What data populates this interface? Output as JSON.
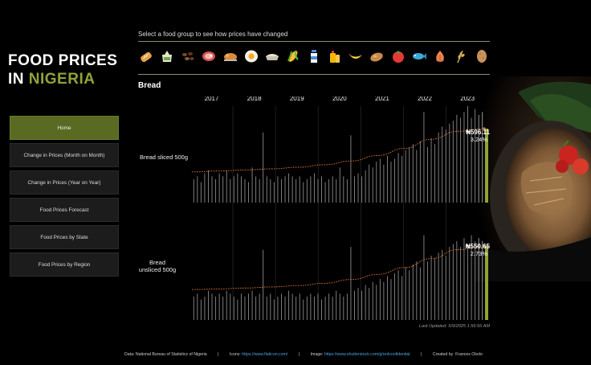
{
  "title": {
    "line1": "FOOD PRICES",
    "line2_prefix": "IN ",
    "line2_accent": "NIGERIA"
  },
  "nav": [
    {
      "label": "Home",
      "active": true
    },
    {
      "label": "Change in Prices (Month on Month)",
      "active": false
    },
    {
      "label": "Change in Prices (Year on Year)",
      "active": false
    },
    {
      "label": "Food Prices Forecast",
      "active": false
    },
    {
      "label": "Food Prices by State",
      "active": false
    },
    {
      "label": "Food Prices by Region",
      "active": false
    }
  ],
  "instruction": "Select a food group to see how prices have changed",
  "food_icons": [
    "bread-icon",
    "rice-bag-icon",
    "beans-icon",
    "beef-icon",
    "chicken-icon",
    "egg-icon",
    "garri-icon",
    "maize-icon",
    "milk-icon",
    "vegetable-oil-icon",
    "plantain-icon",
    "yam-icon",
    "tomato-icon",
    "fish-icon",
    "onion-icon",
    "millet-icon",
    "potato-icon"
  ],
  "selected_group": "Bread",
  "years": [
    "2017",
    "2018",
    "2019",
    "2020",
    "2021",
    "2022",
    "2023"
  ],
  "chart_data": [
    {
      "type": "bar",
      "series_label": "Bread sliced 500g",
      "current_price": "₦596.11",
      "current_change": "3.24%",
      "x_start": "2017-01",
      "x_end": "2023-06",
      "trend": [
        300,
        306,
        313,
        321,
        332,
        349,
        375,
        412,
        461,
        523,
        578,
        596
      ],
      "monthly_change": [
        0.8,
        0.9,
        0.7,
        1.0,
        1.1,
        0.9,
        0.8,
        1.0,
        0.9,
        1.1,
        0.8,
        0.9,
        1.0,
        0.9,
        0.8,
        0.7,
        1.2,
        0.9,
        0.8,
        2.4,
        0.9,
        0.8,
        0.7,
        0.9,
        0.8,
        0.9,
        1.0,
        0.9,
        0.8,
        0.9,
        0.7,
        0.8,
        0.9,
        1.0,
        0.8,
        0.9,
        0.7,
        0.8,
        0.9,
        0.8,
        1.2,
        0.9,
        0.8,
        2.3,
        0.9,
        1.0,
        0.9,
        1.1,
        1.3,
        1.2,
        1.4,
        1.5,
        1.3,
        1.6,
        1.4,
        1.5,
        1.7,
        1.6,
        1.8,
        1.9,
        2.0,
        1.8,
        2.1,
        3.1,
        1.9,
        2.2,
        2.0,
        2.4,
        2.6,
        2.5,
        2.7,
        2.8,
        3.0,
        2.9,
        3.1,
        3.3,
        2.9,
        3.2,
        3.0,
        3.1
      ],
      "max_change": 3.3
    },
    {
      "type": "bar",
      "series_label": "Bread unsliced 500g",
      "current_price": "₦550.65",
      "current_change": "2.73%",
      "x_start": "2017-01",
      "x_end": "2023-06",
      "trend": [
        270,
        274,
        280,
        287,
        296,
        311,
        335,
        368,
        412,
        470,
        527,
        551
      ],
      "monthly_change": [
        0.8,
        0.9,
        0.7,
        0.8,
        1.0,
        0.9,
        0.8,
        0.9,
        0.8,
        1.0,
        0.9,
        0.8,
        0.7,
        0.9,
        0.8,
        0.9,
        1.0,
        0.8,
        0.9,
        2.4,
        0.8,
        0.9,
        0.7,
        0.8,
        0.9,
        0.8,
        1.0,
        0.9,
        0.8,
        0.9,
        0.7,
        0.8,
        0.9,
        0.8,
        0.9,
        0.7,
        0.8,
        0.9,
        0.8,
        1.0,
        0.9,
        0.8,
        0.9,
        2.5,
        1.0,
        1.1,
        1.0,
        1.2,
        1.1,
        1.3,
        1.2,
        1.4,
        1.3,
        1.5,
        1.4,
        1.6,
        1.7,
        1.5,
        1.8,
        1.7,
        1.9,
        2.0,
        1.8,
        2.9,
        2.0,
        2.2,
        2.1,
        2.3,
        2.4,
        2.2,
        2.5,
        2.6,
        2.7,
        2.5,
        2.8,
        2.6,
        2.9,
        2.7,
        2.8,
        2.7
      ],
      "max_change": 3.3
    }
  ],
  "accent_color": "#8fa436",
  "trend_color": "#e07a3a",
  "last_updated": "Last Updated: 5/9/2025 1:56:56 AM",
  "footer": {
    "data_prefix": "Data: National Bureau of Statistics of Nigeria",
    "icons_prefix": "Icons: ",
    "icons_link": "https://www.flaticon.com/",
    "image_prefix": "Image: ",
    "image_link": "https://www.shutterstock.com/g/redconfidential",
    "created_prefix": "Created by",
    "created_name": "Frances Okolo"
  }
}
